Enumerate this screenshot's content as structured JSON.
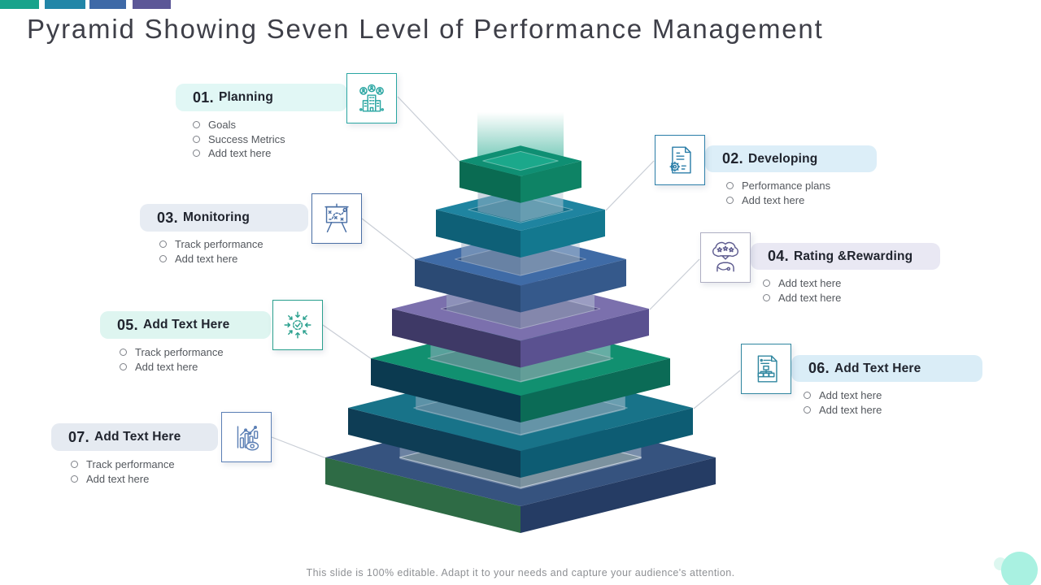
{
  "slide": {
    "title": "Pyramid Showing Seven Level of Performance Management",
    "footer": "This slide is 100% editable. Adapt it to your needs and capture your audience's attention.",
    "top_bars": [
      "#18a38b",
      "#2286a8",
      "#3e69a7",
      "#5c5797"
    ],
    "corner_circle_color": "#a9f1e1",
    "corner_dot_color": "#ddf7f0"
  },
  "levels": [
    {
      "number": "01.",
      "label": "Planning",
      "icon": "building-people-icon",
      "accent": "#2aa6a2",
      "border": "#2aa6a2",
      "bar_bg": "#e1f7f5",
      "bullets": [
        "Goals",
        "Success Metrics",
        "Add text here"
      ]
    },
    {
      "number": "02.",
      "label": "Developing",
      "icon": "document-gear-icon",
      "accent": "#2d7fa9",
      "border": "#2d7fa9",
      "bar_bg": "#dceef8",
      "bullets": [
        "Performance plans",
        "Add text here"
      ]
    },
    {
      "number": "03.",
      "label": "Monitoring",
      "icon": "strategy-board-icon",
      "accent": "#4a6fa5",
      "border": "#4a6fa5",
      "bar_bg": "#e7ecf3",
      "bullets": [
        "Track performance",
        "Add text here"
      ]
    },
    {
      "number": "04.",
      "label": "Rating &Rewarding",
      "icon": "person-stars-icon",
      "accent": "#5d5b8f",
      "border": "#aeaec2",
      "bar_bg": "#e9e8f3",
      "bullets": [
        "Add text here",
        "Add text here"
      ]
    },
    {
      "number": "05.",
      "label": "Add Text Here",
      "icon": "converging-arrows-check-icon",
      "accent": "#2aa08e",
      "border": "#2aa08e",
      "bar_bg": "#def5f0",
      "bullets": [
        "Track performance",
        "Add text here"
      ]
    },
    {
      "number": "06.",
      "label": "Add Text Here",
      "icon": "document-orgchart-icon",
      "accent": "#3187a0",
      "border": "#3187a0",
      "bar_bg": "#daedf7",
      "bullets": [
        "Add text here",
        "Add text here"
      ]
    },
    {
      "number": "07.",
      "label": "Add Text Here",
      "icon": "bar-chart-eye-icon",
      "accent": "#5b7fb5",
      "border": "#5b7fb5",
      "bar_bg": "#e5eaf1",
      "bullets": [
        "Track performance",
        "Add text here"
      ]
    }
  ],
  "pyramid": {
    "layers": [
      {
        "name": "tier-1",
        "top": "#0f8f73",
        "left": "#0a6b52",
        "right": "#0e8365",
        "inset": "#1ba88b"
      },
      {
        "name": "tier-2",
        "top": "#1f84a0",
        "left": "#0e6077",
        "right": "#13788f",
        "inset": "#13708a"
      },
      {
        "name": "tier-3",
        "top": "#3f6ba6",
        "left": "#2b4a74",
        "right": "#35598b",
        "inset": "#305283"
      },
      {
        "name": "tier-4",
        "top": "#7b70ad",
        "left": "#3e3966",
        "right": "#5a5190",
        "inset": "#4d4580"
      },
      {
        "name": "tier-5",
        "top": "#119070",
        "left": "#0b3a50",
        "right": "#0b6b56",
        "inset": "#0b7259"
      },
      {
        "name": "tier-6",
        "top": "#187389",
        "left": "#0e3d55",
        "right": "#0d5c73",
        "inset": "#0f5f76"
      },
      {
        "name": "tier-7",
        "top": "#36537f",
        "left": "#2e6b45",
        "right": "#253c64",
        "inset": "#3d5a66"
      }
    ],
    "beam_color": "#1aa589",
    "spacer_left_color": "rgba(160,177,198,0.5)",
    "spacer_right_color": "rgba(188,201,216,0.5)"
  }
}
